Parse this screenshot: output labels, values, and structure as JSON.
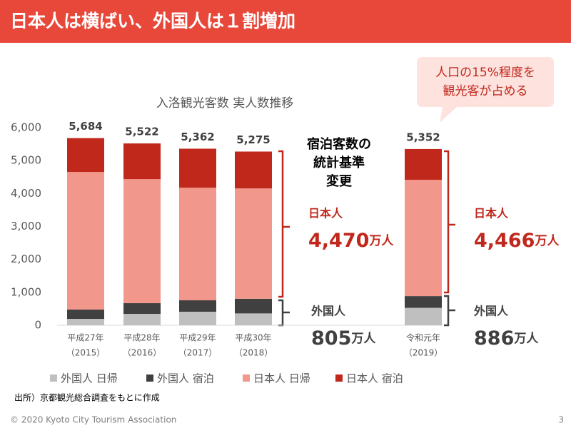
{
  "header": {
    "title": "日本人は横ばい、外国人は１割増加"
  },
  "callout": [
    "人口の15%程度を",
    "観光客が占める"
  ],
  "chart_data": {
    "type": "stacked-bar",
    "title": "入洛観光客数 実人数推移",
    "categories": [
      [
        "平成27年",
        "（2015）"
      ],
      [
        "平成28年",
        "（2016）"
      ],
      [
        "平成29年",
        "（2017）"
      ],
      [
        "平成30年",
        "（2018）"
      ],
      [
        "令和元年",
        "（2019）"
      ]
    ],
    "series": [
      {
        "name": "外国人 日帰",
        "color": "#bfbfbf",
        "values": [
          195,
          346,
          411,
          360,
          530
        ]
      },
      {
        "name": "外国人 宿泊",
        "color": "#404040",
        "values": [
          281,
          325,
          347,
          445,
          356
        ]
      },
      {
        "name": "日本人 日帰",
        "color": "#f1978b",
        "values": [
          4178,
          3766,
          3419,
          3351,
          3530
        ]
      },
      {
        "name": "日本人 宿泊",
        "color": "#c0281c",
        "values": [
          1030,
          1085,
          1185,
          1119,
          936
        ]
      }
    ],
    "totals": [
      5684,
      5522,
      5362,
      5275,
      5352
    ],
    "total_labels": [
      "5,684",
      "5,522",
      "5,362",
      "5,275",
      "5,352"
    ],
    "ylim": [
      0,
      6000
    ],
    "yticks": [
      0,
      {
        "value": 1000,
        "label": "1,000"
      },
      {
        "value": 2000,
        "label": "2,000"
      },
      {
        "value": 3000,
        "label": "3,000"
      },
      {
        "value": 4000,
        "label": "4,000"
      },
      {
        "value": 5000,
        "label": "5,000"
      },
      {
        "value": 6000,
        "label": "6,000"
      }
    ],
    "grid": false,
    "legend": "bottom",
    "change_note": [
      "宿泊客数の",
      "統計基準",
      "変更"
    ],
    "annotations": [
      {
        "label": "日本人",
        "value": "4,470",
        "unit": "万人"
      },
      {
        "label": "外国人",
        "value": "805",
        "unit": "万人"
      },
      {
        "label": "日本人",
        "value": "4,466",
        "unit": "万人"
      },
      {
        "label": "外国人",
        "value": "886",
        "unit": "万人"
      }
    ]
  },
  "source": "出所）京都観光総合調査をもとに作成",
  "footer": {
    "copyright": "© 2020 Kyoto City Tourism Association",
    "page": "3"
  }
}
